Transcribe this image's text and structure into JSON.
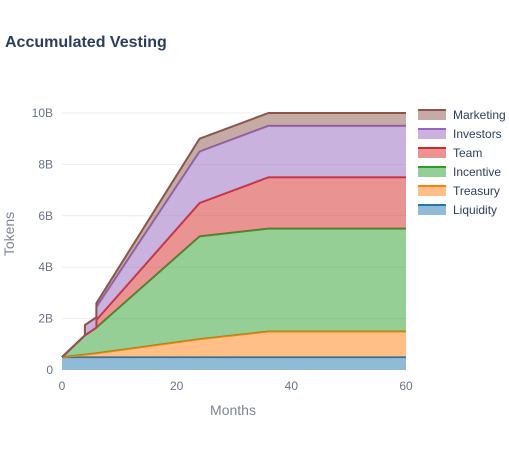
{
  "chart_data": {
    "type": "area",
    "stacked": true,
    "title": "Accumulated Vesting",
    "xlabel": "Months",
    "ylabel": "Tokens",
    "xlim": [
      0,
      60
    ],
    "ylim": [
      0,
      10000000000
    ],
    "x_ticks": [
      0,
      20,
      40,
      60
    ],
    "y_ticks": [
      0,
      2000000000,
      4000000000,
      6000000000,
      8000000000,
      10000000000
    ],
    "x_tick_labels": [
      "0",
      "20",
      "40",
      "60"
    ],
    "y_tick_labels": [
      "0",
      "2B",
      "4B",
      "6B",
      "8B",
      "10B"
    ],
    "grid": true,
    "legend_position": "top-right",
    "x": [
      0,
      4,
      4,
      6,
      6,
      24,
      36,
      60
    ],
    "series": [
      {
        "name": "Liquidity",
        "color": "#1f77b4",
        "values": [
          500000000,
          500000000,
          500000000,
          500000000,
          500000000,
          500000000,
          500000000,
          500000000
        ]
      },
      {
        "name": "Treasury",
        "color": "#ff7f0e",
        "values": [
          0,
          100000000,
          100000000,
          150000000,
          150000000,
          700000000,
          1000000000,
          1000000000
        ]
      },
      {
        "name": "Incentive",
        "color": "#2ca02c",
        "values": [
          0,
          750000000,
          750000000,
          1000000000,
          1000000000,
          4000000000,
          4000000000,
          4000000000
        ]
      },
      {
        "name": "Team",
        "color": "#d62728",
        "values": [
          0,
          0,
          0,
          0,
          300000000,
          1300000000,
          2000000000,
          2000000000
        ]
      },
      {
        "name": "Investors",
        "color": "#9467bd",
        "values": [
          0,
          0,
          400000000,
          400000000,
          500000000,
          2000000000,
          2000000000,
          2000000000
        ]
      },
      {
        "name": "Marketing",
        "color": "#8c564b",
        "values": [
          0,
          0,
          0,
          0,
          150000000,
          500000000,
          500000000,
          500000000
        ]
      }
    ]
  }
}
